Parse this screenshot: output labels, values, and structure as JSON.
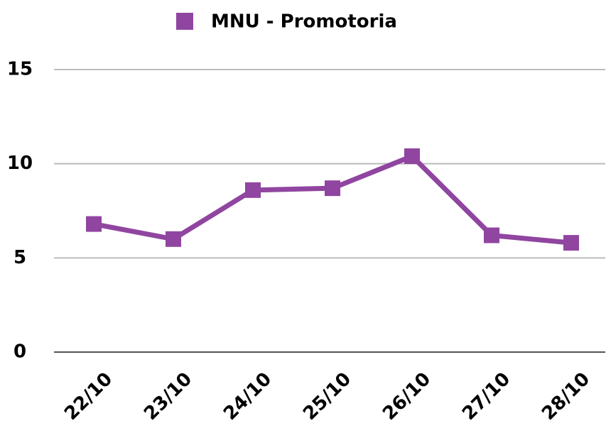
{
  "chart_data": {
    "type": "line",
    "categories": [
      "22/10",
      "23/10",
      "24/10",
      "25/10",
      "26/10",
      "27/10",
      "28/10"
    ],
    "series": [
      {
        "name": "MNU - Promotoria",
        "color": "#9045a0",
        "values": [
          6.8,
          6.0,
          8.6,
          8.7,
          10.4,
          6.2,
          5.8
        ]
      }
    ],
    "ylim": [
      0,
      15
    ],
    "yticks": [
      0,
      5,
      10,
      15
    ],
    "grid": true,
    "legend": "top"
  }
}
